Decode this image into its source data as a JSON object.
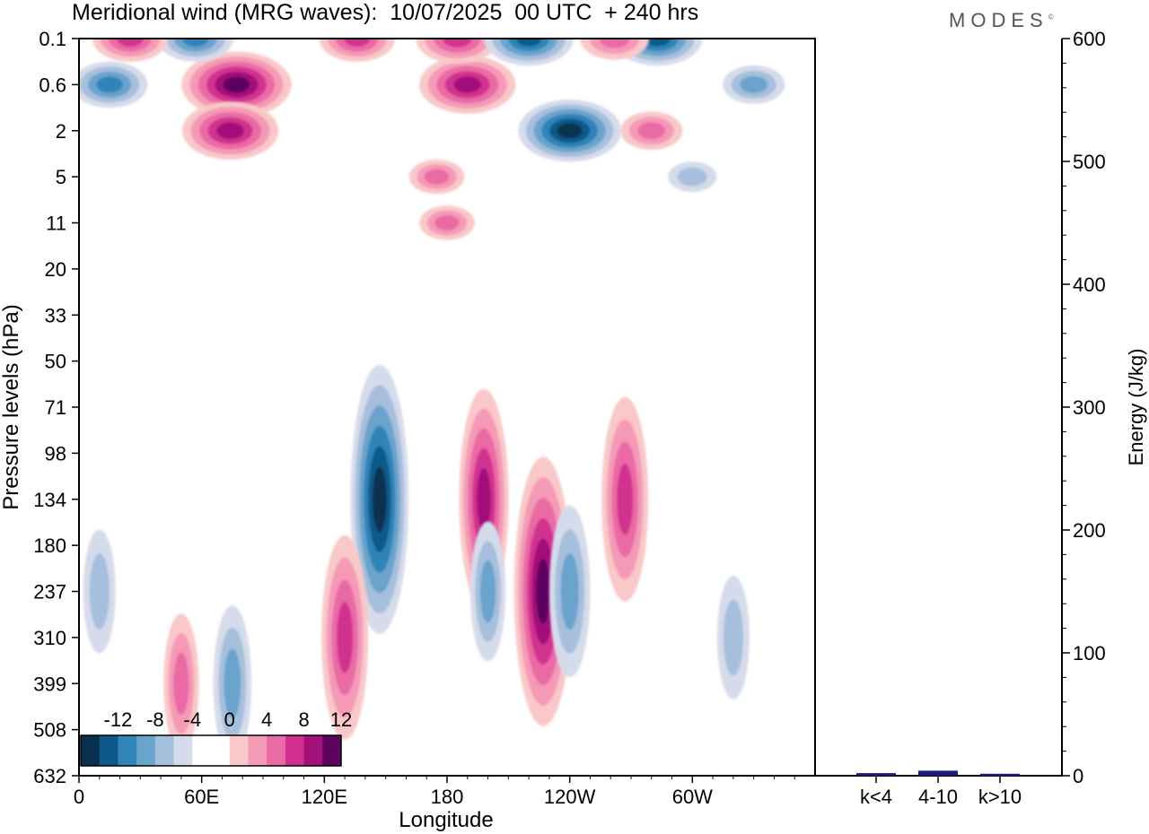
{
  "header": {
    "title": "Meridional wind (MRG waves):  10/07/2025  00 UTC  + 240 hrs",
    "brand": "MODES",
    "brand_mark": "©"
  },
  "chart_data": [
    {
      "type": "heatmap",
      "title": "Meridional wind (MRG waves):  10/07/2025  00 UTC  + 240 hrs",
      "xlabel": "Longitude",
      "ylabel": "Pressure levels (hPa)",
      "x_ticks": [
        "0",
        "60E",
        "120E",
        "180",
        "120W",
        "60W"
      ],
      "y_ticks": [
        "0.1",
        "0.6",
        "2",
        "5",
        "11",
        "20",
        "33",
        "50",
        "71",
        "98",
        "134",
        "180",
        "237",
        "310",
        "399",
        "508",
        "632"
      ],
      "colorbar": {
        "labels": [
          "-12",
          "-8",
          "-4",
          "0",
          "4",
          "8",
          "12"
        ],
        "colors": [
          "#08304f",
          "#0d5a8a",
          "#2f84b8",
          "#6aa3cc",
          "#a6bfdc",
          "#d6dbeb",
          "#ffffff",
          "#ffffff",
          "#f9c8c8",
          "#f59ab6",
          "#ea6aa6",
          "#d1308f",
          "#a3117a",
          "#5c0560"
        ]
      },
      "features": [
        {
          "kind": "negative",
          "lon": 147,
          "level": "134",
          "value": -14
        },
        {
          "kind": "positive",
          "lon": 227,
          "level": "237",
          "value": 14
        },
        {
          "kind": "positive",
          "lon": 198,
          "level": "134",
          "value": 11
        },
        {
          "kind": "positive",
          "lon": 267,
          "level": "134",
          "value": 10
        },
        {
          "kind": "positive",
          "lon": 130,
          "level": "310",
          "value": 10
        },
        {
          "kind": "negative",
          "lon": 240,
          "level": "237",
          "value": -8
        },
        {
          "kind": "negative",
          "lon": 200,
          "level": "237",
          "value": -6
        },
        {
          "kind": "negative",
          "lon": 240,
          "level": "2",
          "value": -13
        },
        {
          "kind": "positive",
          "lon": 77,
          "level": "0.6",
          "value": 14
        },
        {
          "kind": "positive",
          "lon": 74,
          "level": "2",
          "value": 12
        },
        {
          "kind": "positive",
          "lon": 190,
          "level": "0.6",
          "value": 12
        },
        {
          "kind": "positive",
          "lon": 185,
          "level": "0.1",
          "value": 10
        },
        {
          "kind": "negative",
          "lon": 15,
          "level": "0.6",
          "value": -9
        },
        {
          "kind": "negative",
          "lon": 57,
          "level": "0.1",
          "value": -9
        },
        {
          "kind": "negative",
          "lon": 220,
          "level": "0.1",
          "value": -11
        },
        {
          "kind": "negative",
          "lon": 283,
          "level": "0.1",
          "value": -11
        },
        {
          "kind": "positive",
          "lon": 262,
          "level": "0.1",
          "value": 8
        },
        {
          "kind": "positive",
          "lon": 136,
          "level": "0.1",
          "value": 9
        },
        {
          "kind": "positive",
          "lon": 25,
          "level": "0.1",
          "value": 9
        },
        {
          "kind": "positive",
          "lon": 175,
          "level": "5",
          "value": 6
        },
        {
          "kind": "positive",
          "lon": 180,
          "level": "11",
          "value": 6
        },
        {
          "kind": "negative",
          "lon": 300,
          "level": "5",
          "value": -5
        },
        {
          "kind": "negative",
          "lon": 330,
          "level": "0.6",
          "value": -7
        },
        {
          "kind": "positive",
          "lon": 280,
          "level": "2",
          "value": 7
        },
        {
          "kind": "negative",
          "lon": 75,
          "level": "399",
          "value": -7
        },
        {
          "kind": "negative",
          "lon": 10,
          "level": "237",
          "value": -5
        },
        {
          "kind": "positive",
          "lon": 50,
          "level": "399",
          "value": 6
        },
        {
          "kind": "negative",
          "lon": 320,
          "level": "310",
          "value": -5
        }
      ]
    },
    {
      "type": "bar",
      "ylabel": "Energy (J/kg)",
      "categories": [
        "k<4",
        "4-10",
        "k>10"
      ],
      "values": [
        1,
        3,
        0.5
      ],
      "ylim": [
        0,
        600
      ],
      "y_ticks": [
        "0",
        "100",
        "200",
        "300",
        "400",
        "500",
        "600"
      ],
      "bar_color": "#1a1a80"
    }
  ]
}
